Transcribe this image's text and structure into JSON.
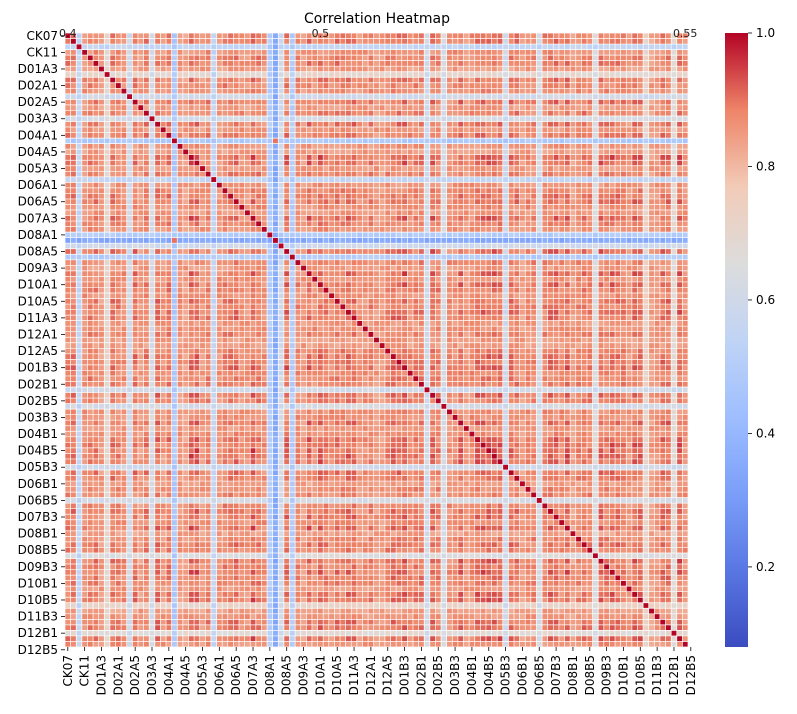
{
  "chart_data": {
    "type": "heatmap",
    "title": "Correlation Heatmap",
    "xlabel": "",
    "ylabel": "",
    "y_tick_labels": [
      "CK07",
      "CK11",
      "D01A3",
      "D02A1",
      "D02A5",
      "D03A3",
      "D04A1",
      "D04A5",
      "D05A3",
      "D06A1",
      "D06A5",
      "D07A3",
      "D08A1",
      "D08A5",
      "D09A3",
      "D10A1",
      "D10A5",
      "D11A3",
      "D12A1",
      "D12A5",
      "D01B3",
      "D02B1",
      "D02B5",
      "D03B3",
      "D04B1",
      "D04B5",
      "D05B3",
      "D06B1",
      "D06B5",
      "D07B3",
      "D08B1",
      "D08B5",
      "D09B3",
      "D10B1",
      "D10B5",
      "D11B3",
      "D12B1",
      "D12B5"
    ],
    "x_tick_labels": [
      "CK07",
      "CK11",
      "D01A3",
      "D02A1",
      "D02A5",
      "D03A3",
      "D04A1",
      "D04A5",
      "D05A3",
      "D06A1",
      "D06A5",
      "D07A3",
      "D08A1",
      "D08A5",
      "D09A3",
      "D10A1",
      "D10A5",
      "D11A3",
      "D12A1",
      "D12A5",
      "D01B3",
      "D02B1",
      "D02B5",
      "D03B3",
      "D04B1",
      "D04B5",
      "D05B3",
      "D06B1",
      "D06B5",
      "D07B3",
      "D08B1",
      "D08B5",
      "D09B3",
      "D10B1",
      "D10B5",
      "D11B3",
      "D12B1",
      "D12B5"
    ],
    "n_variables": 111,
    "value_range": [
      0.08,
      1.0
    ],
    "colorscale": "coolwarm",
    "colorbar_ticks": [
      "0.2",
      "0.4",
      "0.6",
      "0.8",
      "1.0"
    ],
    "colorbar_tick_values": [
      0.2,
      0.4,
      0.6,
      0.8,
      1.0
    ],
    "low_correlation_variables": [
      {
        "index": 2,
        "level": 0.55
      },
      {
        "index": 7,
        "level": 0.7
      },
      {
        "index": 11,
        "level": 0.6
      },
      {
        "index": 15,
        "level": 0.62
      },
      {
        "index": 19,
        "level": 0.48
      },
      {
        "index": 36,
        "level": 0.5
      },
      {
        "index": 37,
        "level": 0.55
      },
      {
        "index": 38,
        "level": 0.6
      },
      {
        "index": 26,
        "level": 0.55
      },
      {
        "index": 40,
        "level": 0.5
      },
      {
        "index": 64,
        "level": 0.6
      },
      {
        "index": 67,
        "level": 0.62
      },
      {
        "index": 78,
        "level": 0.6
      },
      {
        "index": 84,
        "level": 0.62
      },
      {
        "index": 94,
        "level": 0.65
      },
      {
        "index": 103,
        "level": 0.72
      },
      {
        "index": 108,
        "level": 0.68
      }
    ],
    "very_low_rows": [
      {
        "index": 37,
        "level": 0.35
      }
    ],
    "partial_annotation_row": "CK07",
    "visible_annotations": [
      "0.4",
      "0.5",
      "0.55"
    ]
  }
}
